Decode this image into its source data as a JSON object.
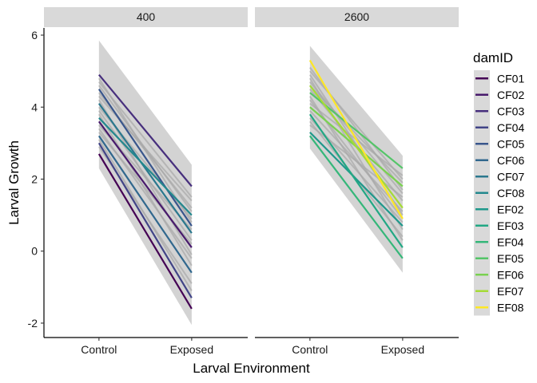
{
  "chart_data": {
    "type": "line",
    "xlabel": "Larval Environment",
    "ylabel": "Larval Growth",
    "categories": [
      "Control",
      "Exposed"
    ],
    "ylim": [
      -2.4,
      6.2
    ],
    "yticks": [
      -2,
      0,
      2,
      4,
      6
    ],
    "ytick_labels": [
      "-2",
      "0",
      "2",
      "4",
      "6"
    ],
    "legend": {
      "title": "damID",
      "position": "right"
    },
    "grid": false,
    "series_colors": {
      "CF01": "#440154",
      "CF02": "#481a6c",
      "CF03": "#472f7d",
      "CF04": "#414487",
      "CF05": "#39568c",
      "CF06": "#31688e",
      "CF07": "#2a788e",
      "CF08": "#23888e",
      "EF02": "#1f988b",
      "EF03": "#22a884",
      "EF04": "#35b779",
      "EF05": "#54c568",
      "EF06": "#7ad151",
      "EF07": "#a5db36",
      "EF08": "#fde725"
    },
    "band_color": "#c8c8c8",
    "panels": [
      {
        "label": "400",
        "ribbon": {
          "control": [
            2.3,
            5.85
          ],
          "exposed": [
            -2.05,
            2.4
          ]
        },
        "series": [
          {
            "name": "CF01",
            "values": [
              2.7,
              -1.6
            ]
          },
          {
            "name": "CF02",
            "values": [
              3.6,
              0.1
            ]
          },
          {
            "name": "CF03",
            "values": [
              4.9,
              1.8
            ]
          },
          {
            "name": "CF04",
            "values": [
              3.0,
              -1.3
            ]
          },
          {
            "name": "CF05",
            "values": [
              4.5,
              0.7
            ]
          },
          {
            "name": "CF06",
            "values": [
              3.2,
              -0.6
            ]
          },
          {
            "name": "CF07",
            "values": [
              4.1,
              0.5
            ]
          },
          {
            "name": "CF08",
            "values": [
              3.7,
              1.0
            ]
          }
        ],
        "gray_lines": [
          [
            4.4,
            1.2
          ],
          [
            3.9,
            0.3
          ],
          [
            4.7,
            1.5
          ],
          [
            3.4,
            -0.2
          ],
          [
            4.0,
            0.9
          ],
          [
            2.9,
            -0.9
          ],
          [
            4.6,
            1.1
          ],
          [
            3.5,
            0.6
          ],
          [
            4.2,
            -0.1
          ],
          [
            3.1,
            -1.1
          ],
          [
            4.8,
            0.8
          ],
          [
            3.8,
            -0.4
          ],
          [
            4.3,
            1.4
          ],
          [
            3.3,
            0.2
          ]
        ]
      },
      {
        "label": "2600",
        "ribbon": {
          "control": [
            2.85,
            5.7
          ],
          "exposed": [
            -0.6,
            2.65
          ]
        },
        "series": [
          {
            "name": "EF02",
            "values": [
              3.3,
              0.7
            ]
          },
          {
            "name": "EF03",
            "values": [
              3.8,
              0.1
            ]
          },
          {
            "name": "EF04",
            "values": [
              3.2,
              -0.2
            ]
          },
          {
            "name": "EF05",
            "values": [
              4.4,
              2.3
            ]
          },
          {
            "name": "EF06",
            "values": [
              4.0,
              1.8
            ]
          },
          {
            "name": "EF07",
            "values": [
              4.6,
              1.2
            ]
          },
          {
            "name": "EF08",
            "values": [
              5.3,
              0.9
            ]
          }
        ],
        "gray_lines": [
          [
            4.7,
            1.6
          ],
          [
            4.2,
            0.9
          ],
          [
            5.0,
            2.0
          ],
          [
            3.6,
            0.4
          ],
          [
            4.5,
            1.4
          ],
          [
            3.9,
            1.1
          ],
          [
            4.8,
            0.6
          ],
          [
            4.1,
            2.1
          ],
          [
            3.5,
            1.5
          ],
          [
            4.9,
            1.0
          ],
          [
            4.3,
            0.3
          ],
          [
            5.1,
            1.7
          ],
          [
            3.7,
            0.8
          ],
          [
            4.6,
            1.9
          ]
        ]
      }
    ]
  }
}
